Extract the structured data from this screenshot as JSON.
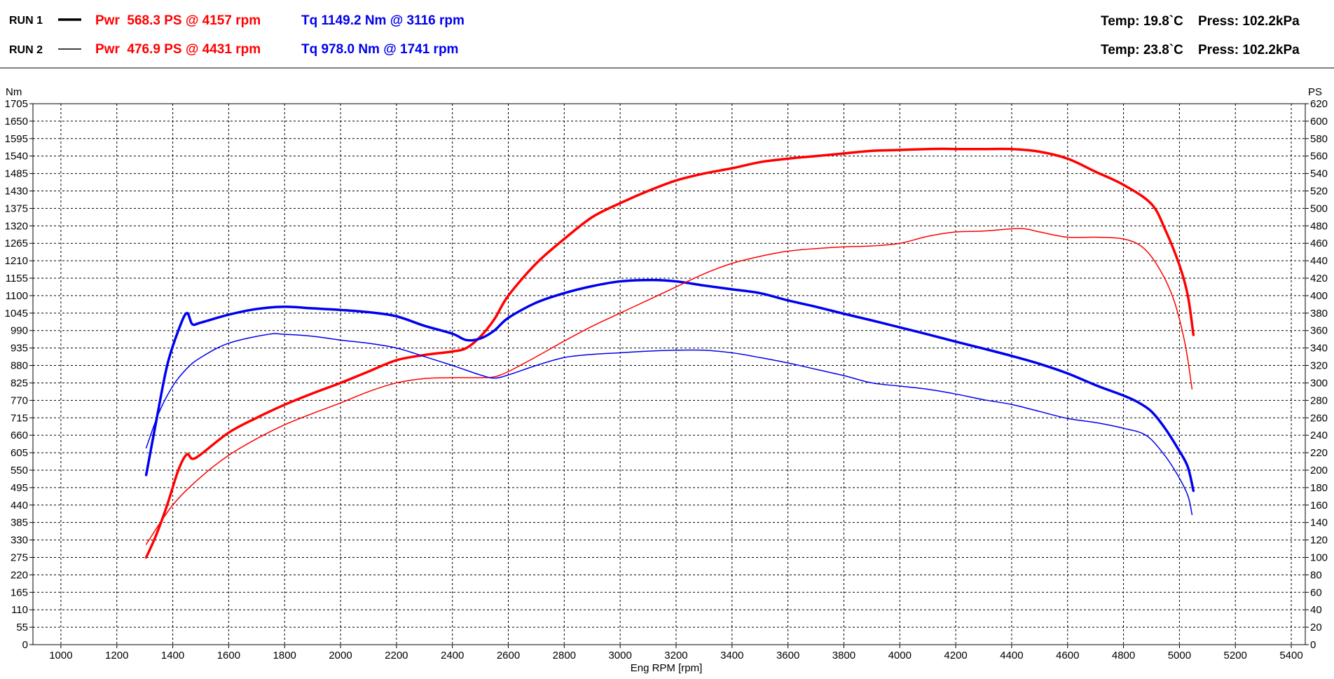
{
  "header": {
    "runs": [
      {
        "label": "RUN 1",
        "power_text": "Pwr  568.3 PS @ 4157 rpm",
        "torque_text": "Tq 1149.2 Nm @ 3116 rpm",
        "conditions_temp": "Temp: 19.8`C",
        "conditions_press": "Press: 102.2kPa"
      },
      {
        "label": "RUN 2",
        "power_text": "Pwr  476.9 PS @ 4431 rpm",
        "torque_text": "Tq 978.0 Nm @ 1741 rpm",
        "conditions_temp": "Temp: 23.8`C",
        "conditions_press": "Press: 102.2kPa"
      }
    ]
  },
  "colors": {
    "power": "#ff0000",
    "torque": "#0000ee",
    "grid": "#000000"
  },
  "chart_data": {
    "type": "line",
    "xlabel": "Eng RPM [rpm]",
    "ylabel_left": "Nm",
    "ylabel_right": "PS",
    "xlim": [
      900,
      5450
    ],
    "ylim_left": [
      0,
      1705
    ],
    "ylim_right": [
      0,
      620
    ],
    "x_ticks": [
      1000,
      1200,
      1400,
      1600,
      1800,
      2000,
      2200,
      2400,
      2600,
      2800,
      3000,
      3200,
      3400,
      3600,
      3800,
      4000,
      4200,
      4400,
      4600,
      4800,
      5000,
      5200,
      5400
    ],
    "y_ticks_left": [
      0,
      55,
      110,
      165,
      220,
      275,
      330,
      385,
      440,
      495,
      550,
      605,
      660,
      715,
      770,
      825,
      880,
      935,
      990,
      1045,
      1100,
      1155,
      1210,
      1265,
      1320,
      1375,
      1430,
      1485,
      1540,
      1595,
      1650,
      1705
    ],
    "y_ticks_right": [
      0,
      20,
      40,
      60,
      80,
      100,
      120,
      140,
      160,
      180,
      200,
      220,
      240,
      260,
      280,
      300,
      320,
      340,
      360,
      380,
      400,
      420,
      440,
      460,
      480,
      500,
      520,
      540,
      560,
      580,
      600,
      620
    ],
    "grid": true,
    "series": [
      {
        "name": "RUN 1",
        "quantity": "power",
        "axis": "right",
        "color": "#ff0000",
        "width": 3.5,
        "x": [
          1305,
          1340,
          1380,
          1420,
          1450,
          1470,
          1500,
          1600,
          1700,
          1800,
          1900,
          2000,
          2100,
          2200,
          2300,
          2400,
          2450,
          2500,
          2550,
          2600,
          2700,
          2800,
          2900,
          3000,
          3100,
          3200,
          3300,
          3400,
          3500,
          3600,
          3700,
          3800,
          3900,
          4000,
          4100,
          4157,
          4200,
          4300,
          4400,
          4500,
          4600,
          4700,
          4800,
          4900,
          4950,
          5000,
          5030,
          5050
        ],
        "y": [
          100,
          125,
          160,
          200,
          218,
          213,
          218,
          243,
          260,
          275,
          288,
          300,
          313,
          326,
          332,
          336,
          340,
          353,
          373,
          400,
          437,
          465,
          490,
          506,
          520,
          532,
          540,
          546,
          553,
          557,
          560,
          563,
          566,
          567,
          568,
          568.3,
          568,
          568,
          568,
          565,
          557,
          542,
          527,
          505,
          475,
          435,
          400,
          355
        ]
      },
      {
        "name": "RUN 1",
        "quantity": "torque",
        "axis": "left",
        "color": "#0000ee",
        "width": 3.5,
        "x": [
          1305,
          1340,
          1380,
          1420,
          1450,
          1470,
          1500,
          1600,
          1700,
          1800,
          1900,
          2000,
          2100,
          2200,
          2300,
          2400,
          2450,
          2500,
          2550,
          2600,
          2700,
          2800,
          2900,
          3000,
          3116,
          3200,
          3300,
          3400,
          3500,
          3600,
          3700,
          3800,
          3900,
          4000,
          4100,
          4200,
          4300,
          4400,
          4500,
          4600,
          4700,
          4800,
          4850,
          4900,
          4950,
          5000,
          5030,
          5050
        ],
        "y": [
          535,
          700,
          880,
          990,
          1045,
          1010,
          1015,
          1040,
          1058,
          1065,
          1060,
          1055,
          1048,
          1035,
          1005,
          980,
          960,
          965,
          990,
          1030,
          1078,
          1108,
          1130,
          1145,
          1149.2,
          1145,
          1132,
          1120,
          1108,
          1085,
          1065,
          1043,
          1022,
          1000,
          978,
          955,
          933,
          910,
          885,
          855,
          818,
          785,
          765,
          735,
          680,
          610,
          560,
          485
        ]
      },
      {
        "name": "RUN 2",
        "quantity": "power",
        "axis": "right",
        "color": "#ff0000",
        "width": 1.5,
        "x": [
          1305,
          1400,
          1500,
          1600,
          1700,
          1800,
          1900,
          2000,
          2100,
          2200,
          2300,
          2400,
          2500,
          2550,
          2600,
          2700,
          2800,
          2900,
          3000,
          3100,
          3200,
          3300,
          3400,
          3500,
          3600,
          3700,
          3800,
          3900,
          4000,
          4100,
          4200,
          4300,
          4431,
          4500,
          4600,
          4700,
          4800,
          4870,
          4930,
          4980,
          5020,
          5045
        ],
        "y": [
          115,
          160,
          192,
          217,
          236,
          252,
          265,
          277,
          290,
          300,
          305,
          306,
          306,
          307,
          313,
          330,
          348,
          365,
          380,
          395,
          410,
          425,
          437,
          445,
          451,
          454,
          456,
          457,
          460,
          468,
          473,
          474,
          476.9,
          473,
          467,
          467,
          465,
          455,
          430,
          395,
          345,
          293
        ]
      },
      {
        "name": "RUN 2",
        "quantity": "torque",
        "axis": "left",
        "color": "#0000ee",
        "width": 1.5,
        "x": [
          1305,
          1350,
          1400,
          1450,
          1500,
          1600,
          1741,
          1800,
          1900,
          2000,
          2100,
          2200,
          2300,
          2400,
          2500,
          2550,
          2600,
          2700,
          2800,
          2900,
          3000,
          3100,
          3200,
          3300,
          3400,
          3500,
          3600,
          3700,
          3800,
          3900,
          4000,
          4100,
          4200,
          4300,
          4400,
          4500,
          4600,
          4700,
          4800,
          4880,
          4940,
          4990,
          5030,
          5045
        ],
        "y": [
          620,
          730,
          815,
          870,
          905,
          950,
          978,
          978,
          972,
          960,
          950,
          935,
          908,
          880,
          850,
          840,
          850,
          880,
          905,
          915,
          920,
          925,
          928,
          928,
          920,
          905,
          888,
          868,
          848,
          825,
          815,
          805,
          790,
          772,
          757,
          735,
          713,
          700,
          682,
          660,
          605,
          540,
          470,
          410
        ]
      }
    ]
  }
}
